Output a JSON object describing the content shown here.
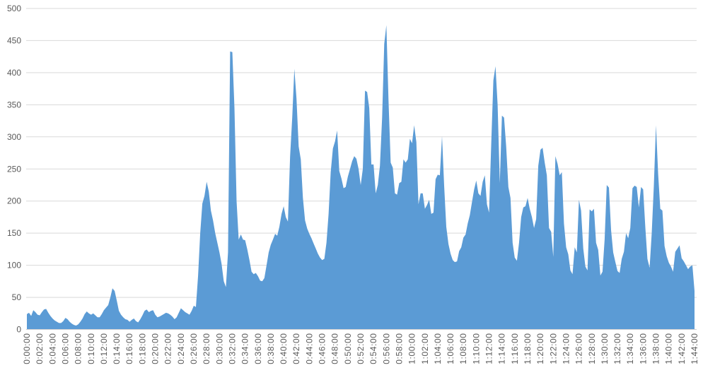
{
  "chart_data": {
    "type": "area",
    "title": "",
    "xlabel": "",
    "ylabel": "",
    "legend": "none",
    "grid": "horizontal",
    "ylim": [
      0,
      500
    ],
    "y_ticks": [
      0,
      50,
      100,
      150,
      200,
      250,
      300,
      350,
      400,
      450,
      500
    ],
    "x_start": "0:00:00",
    "x_end": "1:44:00",
    "x_interval_seconds": 20,
    "x_label_interval_seconds": 120,
    "x_labels": [
      "0:00:00",
      "0:02:00",
      "0:04:00",
      "0:06:00",
      "0:08:00",
      "0:10:00",
      "0:12:00",
      "0:14:00",
      "0:16:00",
      "0:18:00",
      "0:20:00",
      "0:22:00",
      "0:24:00",
      "0:26:00",
      "0:28:00",
      "0:30:00",
      "0:32:00",
      "0:34:00",
      "0:36:00",
      "0:38:00",
      "0:40:00",
      "0:42:00",
      "0:44:00",
      "0:46:00",
      "0:48:00",
      "0:50:00",
      "0:52:00",
      "0:54:00",
      "0:56:00",
      "0:58:00",
      "1:00:00",
      "1:02:00",
      "1:04:00",
      "1:06:00",
      "1:08:00",
      "1:10:00",
      "1:12:00",
      "1:14:00",
      "1:16:00",
      "1:18:00",
      "1:20:00",
      "1:22:00",
      "1:24:00",
      "1:26:00",
      "1:28:00",
      "1:30:00",
      "1:32:00",
      "1:34:00",
      "1:36:00",
      "1:38:00",
      "1:40:00",
      "1:42:00",
      "1:44:00"
    ],
    "values": [
      24,
      26,
      21,
      30,
      27,
      23,
      22,
      27,
      31,
      32,
      26,
      21,
      17,
      14,
      12,
      10,
      10,
      13,
      18,
      16,
      12,
      9,
      7,
      6,
      8,
      12,
      17,
      24,
      28,
      25,
      23,
      25,
      22,
      19,
      19,
      24,
      30,
      34,
      38,
      50,
      64,
      60,
      45,
      29,
      23,
      19,
      16,
      15,
      12,
      15,
      17,
      13,
      11,
      16,
      22,
      29,
      31,
      27,
      29,
      30,
      23,
      19,
      20,
      22,
      24,
      26,
      25,
      23,
      20,
      16,
      19,
      26,
      33,
      30,
      27,
      25,
      23,
      29,
      37,
      35,
      84,
      150,
      196,
      208,
      230,
      215,
      185,
      170,
      150,
      135,
      120,
      102,
      75,
      66,
      120,
      433,
      432,
      345,
      200,
      140,
      148,
      140,
      139,
      125,
      108,
      90,
      86,
      88,
      83,
      76,
      75,
      80,
      100,
      120,
      132,
      140,
      149,
      146,
      160,
      180,
      192,
      175,
      168,
      270,
      330,
      406,
      360,
      285,
      265,
      205,
      170,
      157,
      149,
      142,
      134,
      126,
      118,
      112,
      108,
      110,
      135,
      180,
      245,
      282,
      293,
      310,
      247,
      235,
      220,
      222,
      238,
      250,
      262,
      270,
      266,
      250,
      225,
      250,
      372,
      370,
      345,
      257,
      257,
      212,
      225,
      255,
      330,
      445,
      474,
      358,
      260,
      252,
      212,
      210,
      228,
      230,
      265,
      260,
      265,
      297,
      290,
      318,
      292,
      195,
      212,
      212,
      188,
      194,
      202,
      180,
      182,
      234,
      241,
      240,
      301,
      224,
      160,
      133,
      118,
      108,
      105,
      106,
      122,
      128,
      143,
      148,
      165,
      178,
      198,
      218,
      232,
      212,
      208,
      230,
      240,
      195,
      182,
      290,
      388,
      410,
      350,
      228,
      333,
      330,
      285,
      222,
      205,
      135,
      112,
      107,
      135,
      175,
      190,
      192,
      205,
      188,
      175,
      158,
      172,
      255,
      280,
      283,
      260,
      240,
      158,
      152,
      113,
      270,
      258,
      240,
      245,
      165,
      128,
      117,
      92,
      86,
      128,
      120,
      202,
      185,
      126,
      98,
      92,
      187,
      184,
      188,
      135,
      124,
      84,
      90,
      140,
      225,
      221,
      155,
      120,
      105,
      91,
      88,
      110,
      121,
      150,
      142,
      158,
      220,
      224,
      222,
      190,
      222,
      218,
      160,
      110,
      96,
      150,
      224,
      318,
      242,
      188,
      185,
      130,
      114,
      104,
      98,
      90,
      121,
      126,
      131,
      111,
      106,
      100,
      94,
      98,
      100,
      60
    ],
    "colors": {
      "area_fill": "#5b9bd5",
      "gridline": "#d9d9d9",
      "axis_line": "#d0d0d0",
      "tick_label": "#595959",
      "background": "#ffffff"
    }
  }
}
